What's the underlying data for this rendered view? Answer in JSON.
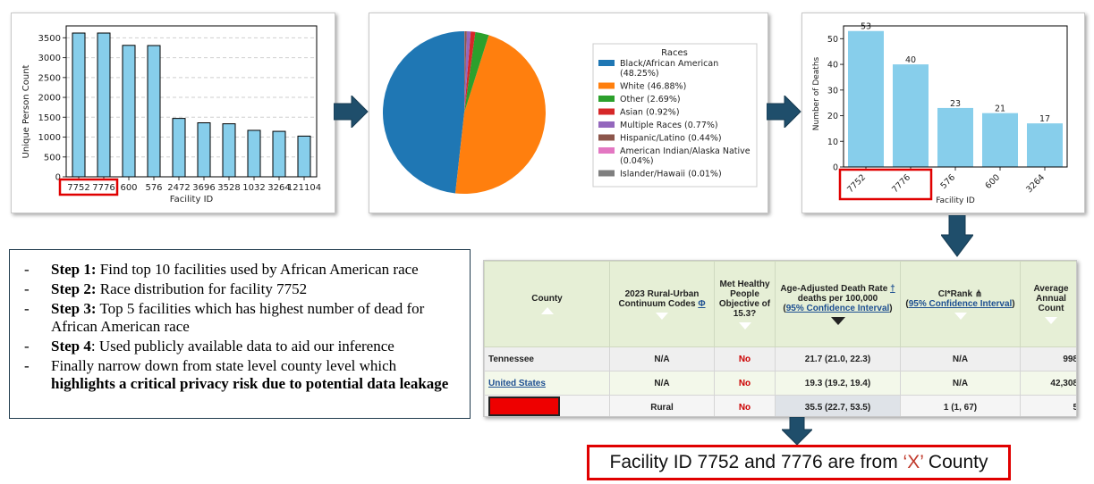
{
  "colors": {
    "bar_blue": "#87ceeb",
    "arrow": "#1f4e6b",
    "highlight_red": "#e00000",
    "header_green": "#e6efd6",
    "link_blue": "#1d4f91",
    "no_red": "#cc0000"
  },
  "charts": {
    "chart1": {
      "ylabel": "Unique Person Count",
      "xlabel": "Facility ID"
    },
    "chart2": {
      "legend_title": "Races"
    },
    "chart3": {
      "ylabel": "Number of Deaths",
      "xlabel": "Facility ID"
    }
  },
  "chart_data": [
    {
      "type": "bar",
      "title": "",
      "xlabel": "Facility ID",
      "ylabel": "Unique Person Count",
      "categories": [
        "7752",
        "7776",
        "600",
        "576",
        "2472",
        "3696",
        "3528",
        "1032",
        "3264",
        "121104"
      ],
      "values": [
        3620,
        3620,
        3310,
        3305,
        1470,
        1360,
        1335,
        1170,
        1145,
        1025
      ],
      "ylim": [
        0,
        3800
      ],
      "yticks": [
        0,
        500,
        1000,
        1500,
        2000,
        2500,
        3000,
        3500
      ],
      "grid": "horizontal-dashed",
      "highlighted_categories": [
        "7752",
        "7776"
      ]
    },
    {
      "type": "pie",
      "legend_title": "Races",
      "labels": [
        "Black/African American",
        "White",
        "Other",
        "Asian",
        "Multiple Races",
        "Hispanic/Latino",
        "American Indian/Alaska Native",
        "Islander/Hawaii"
      ],
      "values": [
        48.25,
        46.88,
        2.69,
        0.92,
        0.77,
        0.44,
        0.04,
        0.01
      ],
      "legend_labels": [
        "Black/African American (48.25%)",
        "White (46.88%)",
        "Other (2.69%)",
        "Asian (0.92%)",
        "Multiple Races (0.77%)",
        "Hispanic/Latino (0.44%)",
        "American Indian/Alaska Native (0.04%)",
        "Islander/Hawaii (0.01%)"
      ],
      "colors": [
        "#1f77b4",
        "#ff7f0e",
        "#2ca02c",
        "#d62728",
        "#9467bd",
        "#8c564b",
        "#e377c2",
        "#7f7f7f"
      ],
      "legend_position": "right"
    },
    {
      "type": "bar",
      "title": "",
      "xlabel": "Facility ID",
      "ylabel": "Number of Deaths",
      "categories": [
        "7752",
        "7776",
        "576",
        "600",
        "3264"
      ],
      "values": [
        53,
        40,
        23,
        21,
        17
      ],
      "data_labels": [
        "53",
        "40",
        "23",
        "21",
        "17"
      ],
      "ylim": [
        0,
        55
      ],
      "yticks": [
        0,
        10,
        20,
        30,
        40,
        50
      ],
      "highlighted_categories": [
        "7752",
        "7776"
      ]
    }
  ],
  "steps": [
    {
      "label": "Step 1:",
      "text": " Find top 10 facilities used by African American race",
      "bold_tail": ""
    },
    {
      "label": "Step 2:",
      "text": " Race distribution for facility 7752",
      "bold_tail": ""
    },
    {
      "label": "Step 3:",
      "text": " Top 5 facilities which has highest number of dead for African American race",
      "bold_tail": ""
    },
    {
      "label": "Step 4",
      "text": ": Used publicly available data to aid our inference",
      "bold_tail": ""
    },
    {
      "label": "",
      "text": "Finally narrow down from state level county level which ",
      "bold_tail": "highlights a critical privacy risk due to potential data leakage"
    }
  ],
  "table": {
    "headers": {
      "county": "County",
      "rural_urban": "2023 Rural-Urban Continuum Codes",
      "rural_urban_mark": "Φ",
      "met": "Met Healthy People Objective of 15.3?",
      "death_rate_line1": "Age-Adjusted Death Rate",
      "death_rate_mark": "†",
      "death_rate_line2": "deaths per 100,000",
      "death_rate_ci": "95% Confidence Interval",
      "ci_rank": "CI*Rank",
      "ci_rank_mark": "⋔",
      "ci_rank_ci": "95% Confidence Interval",
      "avg": "Average Annual Count"
    },
    "rows": [
      {
        "county": "Tennessee",
        "rural_urban": "N/A",
        "met": "No",
        "death_rate": "21.7 (21.0, 22.3)",
        "ci_rank": "N/A",
        "avg": "998"
      },
      {
        "county": "United States",
        "rural_urban": "N/A",
        "met": "No",
        "death_rate": "19.3 (19.2, 19.4)",
        "ci_rank": "N/A",
        "avg": "42,308"
      },
      {
        "county": "",
        "rural_urban": "Rural",
        "met": "No",
        "death_rate": "35.5 (22.7, 53.5)",
        "ci_rank": "1 (1, 67)",
        "avg": "5"
      }
    ]
  },
  "result": {
    "prefix": "Facility ID 7752 and 7776 are from ",
    "highlight": "‘X’",
    "suffix": " County"
  }
}
